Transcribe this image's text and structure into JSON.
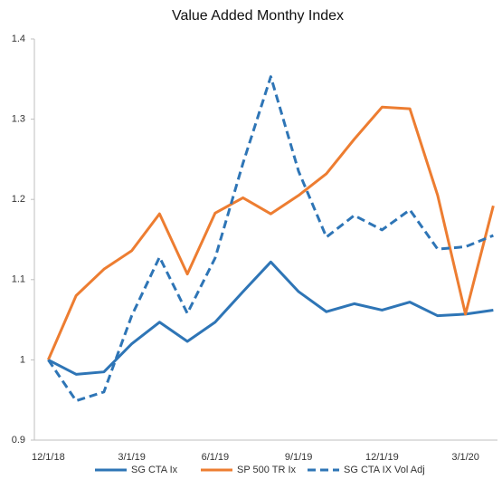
{
  "chart_data": {
    "type": "line",
    "title": "Value Added Monthy Index",
    "categories": [
      "12/1/18",
      null,
      null,
      "3/1/19",
      null,
      null,
      "6/1/19",
      null,
      null,
      "9/1/19",
      null,
      null,
      "12/1/19",
      null,
      null,
      "3/1/20",
      null
    ],
    "series": [
      {
        "name": "SG CTA Ix",
        "color": "#2e75b6",
        "dashed": false,
        "values": [
          1.0,
          0.982,
          0.985,
          1.02,
          1.047,
          1.023,
          1.047,
          1.085,
          1.122,
          1.085,
          1.06,
          1.07,
          1.062,
          1.072,
          1.055,
          1.057,
          1.062
        ]
      },
      {
        "name": "SP 500 TR Ix",
        "color": "#ed7d31",
        "dashed": false,
        "values": [
          1.0,
          1.08,
          1.113,
          1.136,
          1.182,
          1.107,
          1.183,
          1.202,
          1.182,
          1.205,
          1.232,
          1.275,
          1.315,
          1.313,
          1.205,
          1.057,
          1.192
        ]
      },
      {
        "name": "SG CTA IX Vol Adj",
        "color": "#2e75b6",
        "dashed": true,
        "values": [
          1.0,
          0.949,
          0.96,
          1.055,
          1.128,
          1.058,
          1.127,
          1.245,
          1.353,
          1.235,
          1.153,
          1.18,
          1.162,
          1.187,
          1.138,
          1.141,
          1.155
        ]
      }
    ],
    "ylim": [
      0.9,
      1.4
    ],
    "yticks": [
      0.9,
      1,
      1.1,
      1.2,
      1.3,
      1.4
    ],
    "grid": false,
    "legend": "bottom"
  }
}
